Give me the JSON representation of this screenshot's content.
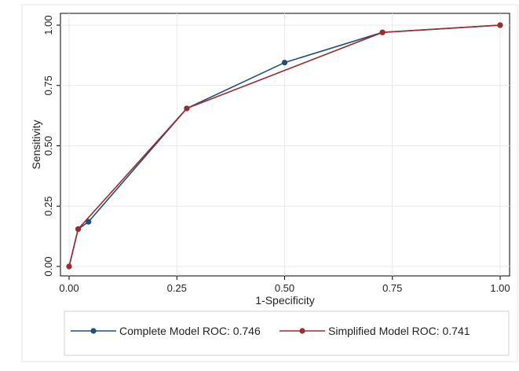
{
  "chart_data": {
    "type": "line",
    "title": "",
    "xlabel": "1-Specificity",
    "ylabel": "Sensitivity",
    "xlim": [
      0,
      1
    ],
    "ylim": [
      0,
      1
    ],
    "grid": true,
    "legend_position": "bottom",
    "xticks": [
      0,
      0.25,
      0.5,
      0.75,
      1
    ],
    "xtick_labels": [
      "0.00",
      "0.25",
      "0.50",
      "0.75",
      "1.00"
    ],
    "yticks": [
      0,
      0.25,
      0.5,
      0.75,
      1
    ],
    "ytick_labels": [
      "0.00",
      "0.25",
      "0.50",
      "0.75",
      "1.00"
    ],
    "series": [
      {
        "name": "Complete Model ROC: 0.746",
        "color": "#1f4e79",
        "x": [
          0,
          0.021,
          0.045,
          0.273,
          0.5,
          0.727,
          1.0
        ],
        "y": [
          0,
          0.155,
          0.185,
          0.655,
          0.845,
          0.97,
          1.0
        ]
      },
      {
        "name": "Simplified Model ROC: 0.741",
        "color": "#9b2d30",
        "x": [
          0,
          0.021,
          0.273,
          0.727,
          1.0
        ],
        "y": [
          0,
          0.155,
          0.655,
          0.97,
          1.0
        ]
      }
    ]
  }
}
